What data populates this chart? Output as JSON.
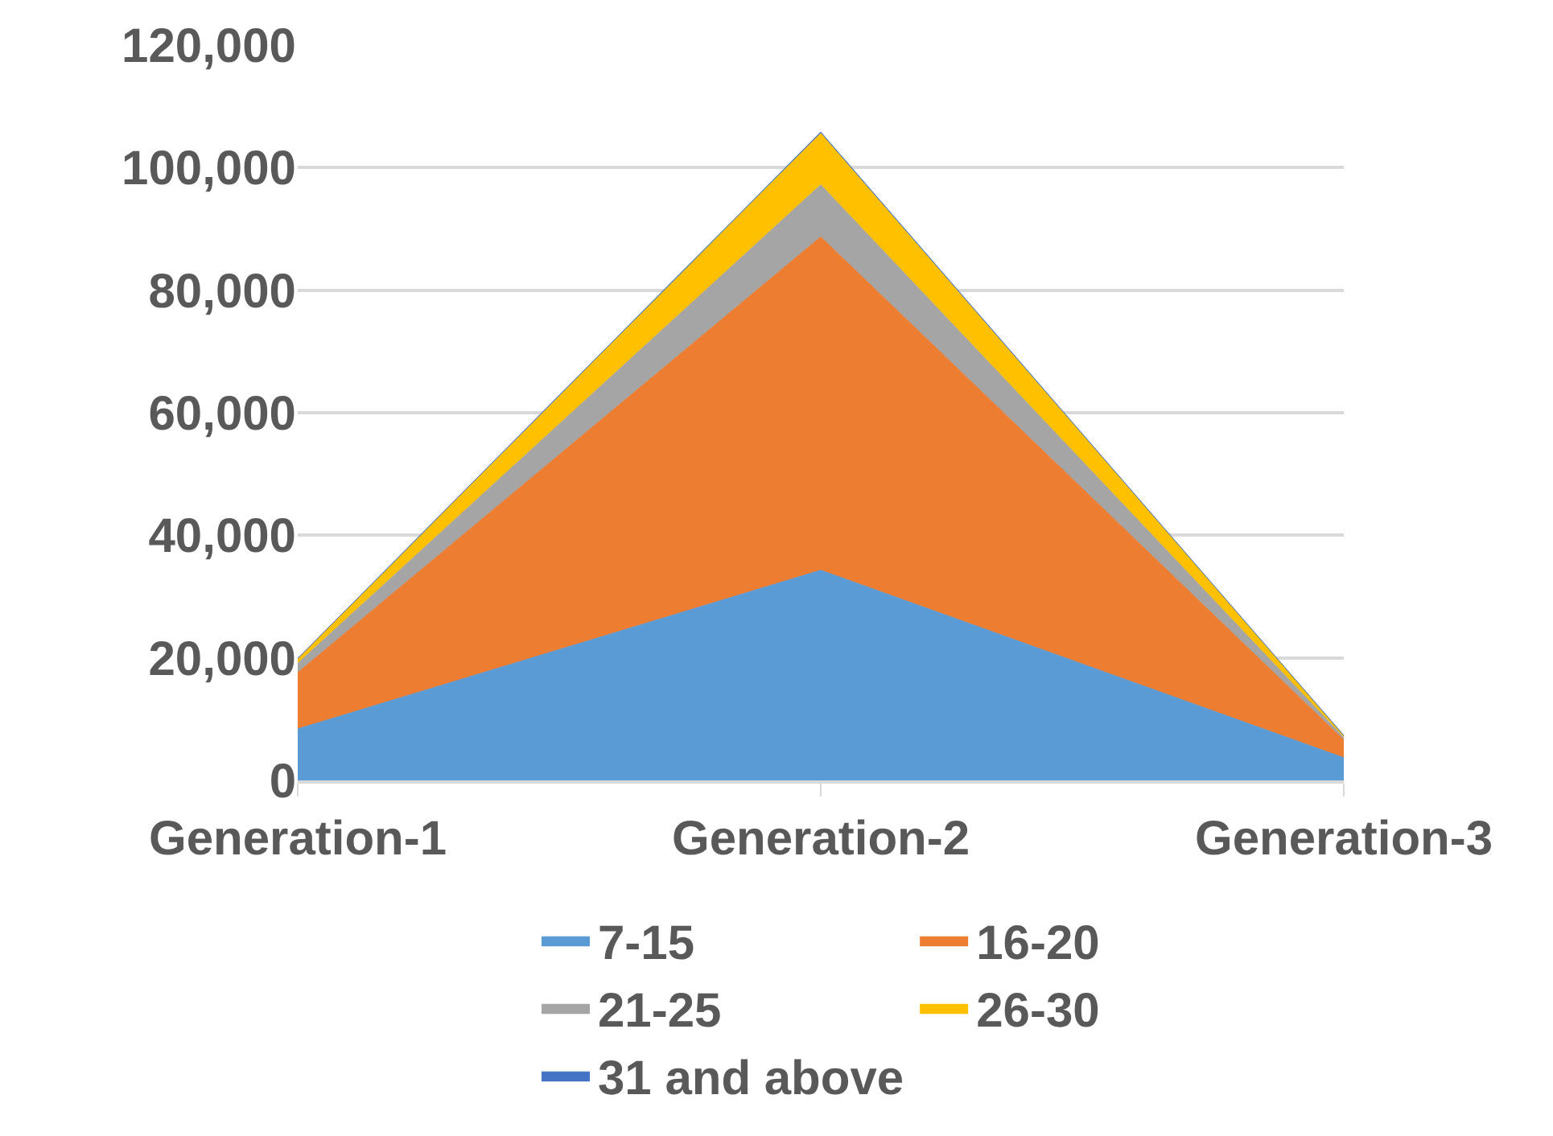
{
  "chart_data": {
    "type": "area",
    "stacked": true,
    "categories": [
      "Generation-1",
      "Generation-2",
      "Generation-3"
    ],
    "series": [
      {
        "name": "7-15",
        "color": "#5b9bd5",
        "values": [
          8400,
          34300,
          3700
        ]
      },
      {
        "name": "16-20",
        "color": "#ed7d31",
        "values": [
          9200,
          54400,
          2900
        ]
      },
      {
        "name": "21-25",
        "color": "#a5a5a5",
        "values": [
          1500,
          8500,
          400
        ]
      },
      {
        "name": "26-30",
        "color": "#ffc000",
        "values": [
          700,
          8400,
          300
        ]
      },
      {
        "name": "31 and above",
        "color": "#4472c4",
        "values": [
          100,
          200,
          50
        ]
      }
    ],
    "ylim": [
      0,
      120000
    ],
    "yticks": [
      {
        "value": 0,
        "label": "0"
      },
      {
        "value": 20000,
        "label": "20,000"
      },
      {
        "value": 40000,
        "label": "40,000"
      },
      {
        "value": 60000,
        "label": "60,000"
      },
      {
        "value": 80000,
        "label": "80,000"
      },
      {
        "value": 100000,
        "label": "100,000"
      },
      {
        "value": 120000,
        "label": "120,000"
      }
    ],
    "grid": "y",
    "legend": "bottom"
  }
}
